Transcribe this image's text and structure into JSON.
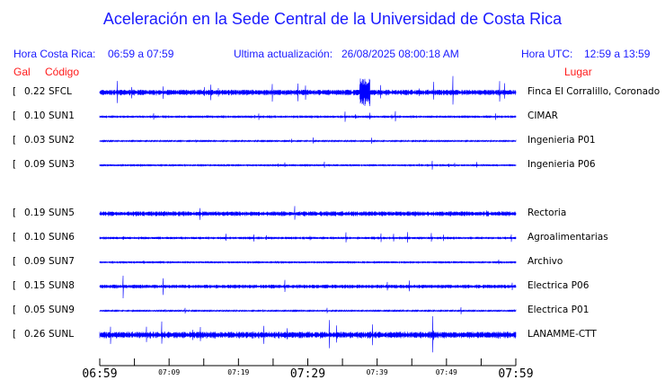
{
  "chart_data": {
    "type": "line",
    "title": "Aceleración en la Sede Central de la Universidad de Costa Rica",
    "header": {
      "local_label": "Hora Costa Rica:",
      "local_range": "06:59 a 07:59",
      "update_label": "Ultima actualización:",
      "update_value": "26/08/2025 08:00:18 AM",
      "utc_label": "Hora UTC:",
      "utc_range": "12:59 a 13:59"
    },
    "columns": {
      "gal": "Gal",
      "code": "Código",
      "place": "Lugar"
    },
    "stations": [
      {
        "gal": "0.22",
        "code": "SFCL",
        "place": "Finca El Corralillo, Coronado"
      },
      {
        "gal": "0.10",
        "code": "SUN1",
        "place": "CIMAR"
      },
      {
        "gal": "0.03",
        "code": "SUN2",
        "place": "Ingenieria P01"
      },
      {
        "gal": "0.09",
        "code": "SUN3",
        "place": "Ingenieria P06"
      },
      {
        "gal": "0.19",
        "code": "SUN5",
        "place": "Rectoria"
      },
      {
        "gal": "0.10",
        "code": "SUN6",
        "place": "Agroalimentarias"
      },
      {
        "gal": "0.09",
        "code": "SUN7",
        "place": "Archivo"
      },
      {
        "gal": "0.15",
        "code": "SUN8",
        "place": "Electrica P06"
      },
      {
        "gal": "0.05",
        "code": "SUN9",
        "place": "Electrica P01"
      },
      {
        "gal": "0.26",
        "code": "SUNL",
        "place": "LANAMME-CTT"
      }
    ],
    "x_ticks_major": [
      "06:59",
      "07:29",
      "07:59"
    ],
    "x_ticks_minor": [
      "07:09",
      "07:19",
      "07:39",
      "07:49"
    ],
    "trace_color": "#0000ff",
    "label_color": "#1a1aff",
    "header_red": "#ff1a1a"
  }
}
